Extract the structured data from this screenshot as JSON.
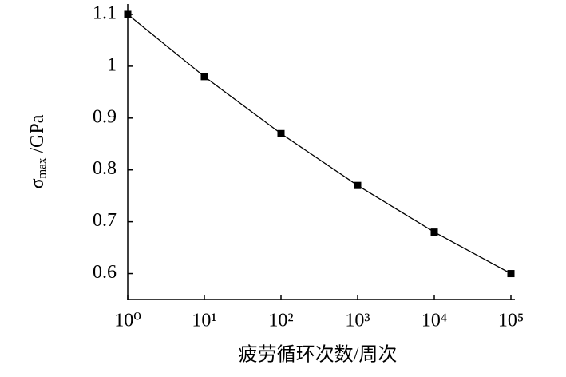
{
  "chart_data": {
    "type": "line",
    "xscale": "log",
    "x": [
      1,
      10,
      100,
      1000,
      10000,
      100000
    ],
    "series": [
      {
        "name": "σmax",
        "color": "#000000",
        "values": [
          1.1,
          0.98,
          0.87,
          0.77,
          0.68,
          0.6
        ]
      }
    ],
    "xlim": [
      1,
      100000
    ],
    "xticks": [
      {
        "value": 1,
        "label": "10⁰"
      },
      {
        "value": 10,
        "label": "10¹"
      },
      {
        "value": 100,
        "label": "10²"
      },
      {
        "value": 1000,
        "label": "10³"
      },
      {
        "value": 10000,
        "label": "10⁴"
      },
      {
        "value": 100000,
        "label": "10⁵"
      }
    ],
    "ylim": [
      0.55,
      1.12
    ],
    "yticks": [
      0.6,
      0.7,
      0.8,
      0.9,
      1.0,
      1.1
    ],
    "xlabel": "疲劳循环次数/周次",
    "ylabel": {
      "symbol": "σ",
      "subscript": "max",
      "unit": "/GPa"
    },
    "grid": false,
    "marker": "square"
  }
}
